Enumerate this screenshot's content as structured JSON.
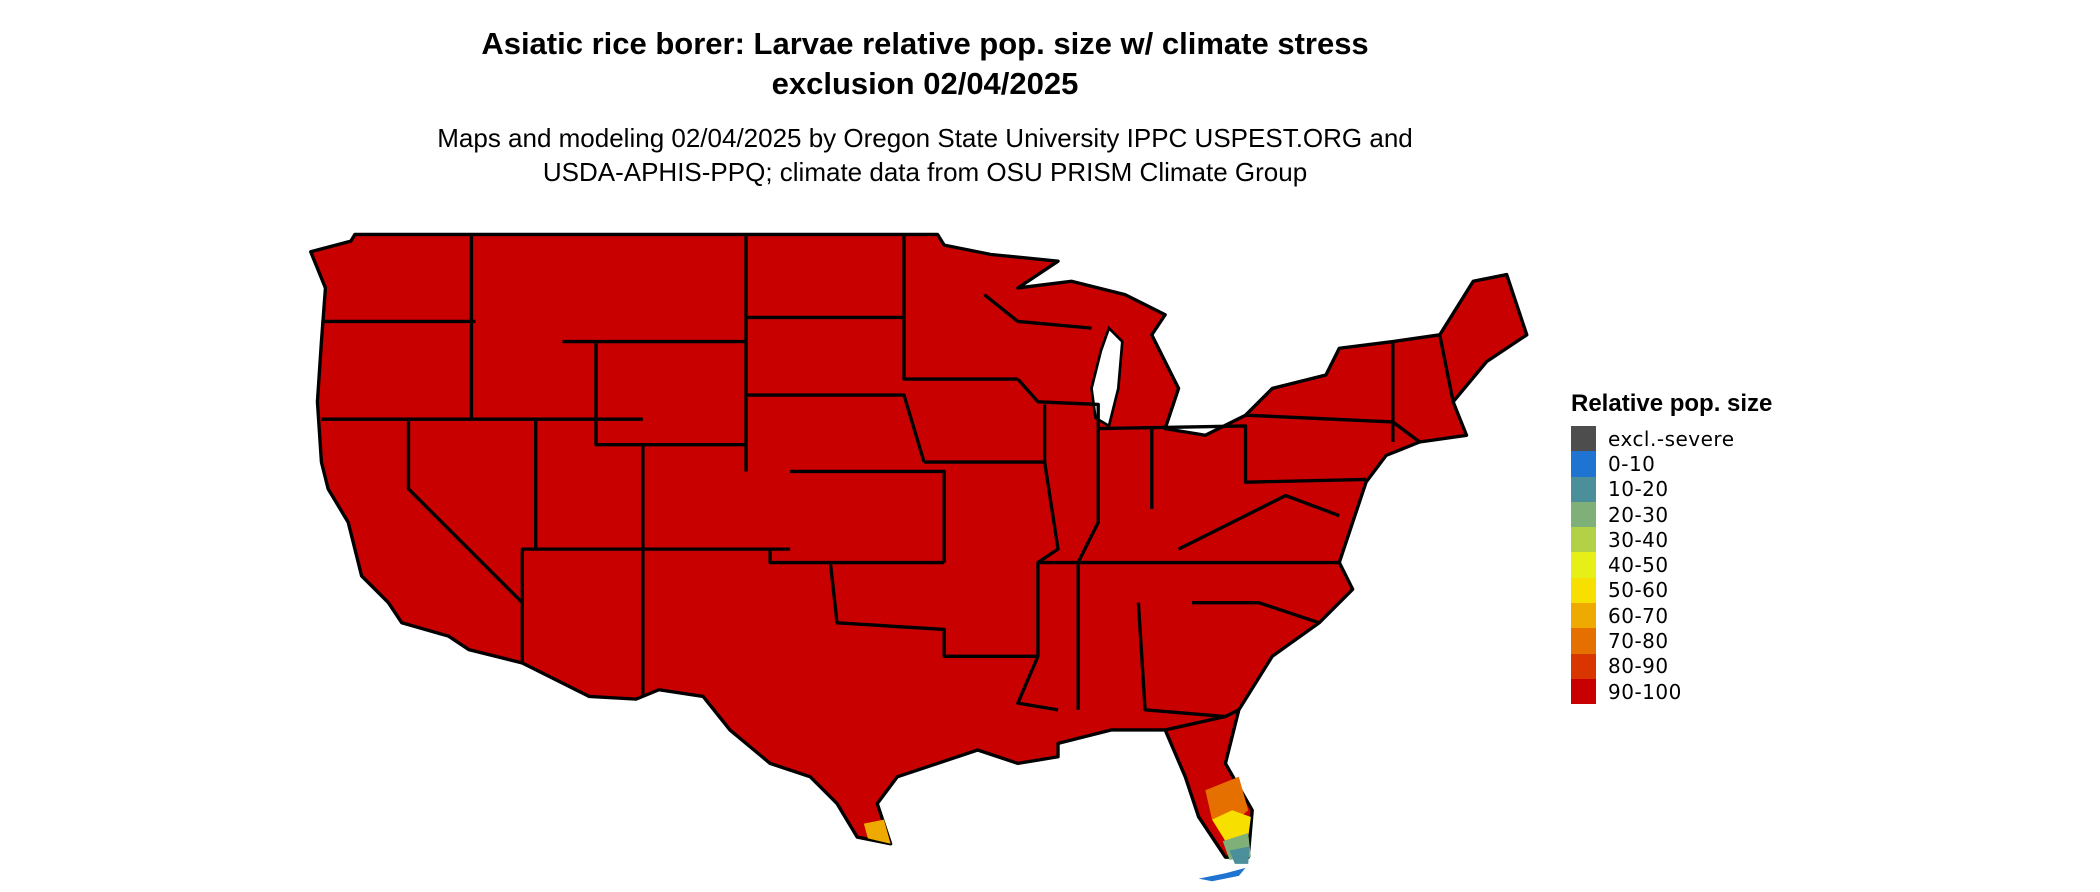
{
  "title_line1": "Asiatic rice borer: Larvae relative pop. size w/ climate stress",
  "title_line2": "exclusion 02/04/2025",
  "subtitle_line1": "Maps and modeling 02/04/2025 by Oregon State University IPPC USPEST.ORG and",
  "subtitle_line2": "USDA-APHIS-PPQ; climate data from OSU PRISM Climate Group",
  "legend": {
    "title": "Relative pop. size",
    "items": [
      {
        "label": "excl.-severe",
        "color": "#4d4d4d"
      },
      {
        "label": "0-10",
        "color": "#1f74d1"
      },
      {
        "label": "10-20",
        "color": "#4a8f9a"
      },
      {
        "label": "20-30",
        "color": "#7fb078"
      },
      {
        "label": "30-40",
        "color": "#b3d147"
      },
      {
        "label": "40-50",
        "color": "#e6ef17"
      },
      {
        "label": "50-60",
        "color": "#f7e000"
      },
      {
        "label": "60-70",
        "color": "#eeaa00"
      },
      {
        "label": "70-80",
        "color": "#e57000"
      },
      {
        "label": "80-90",
        "color": "#d93500"
      },
      {
        "label": "90-100",
        "color": "#c80000"
      }
    ]
  },
  "map": {
    "region": "Contiguous United States",
    "dominant_class": "90-100",
    "dominant_color": "#c80000"
  }
}
